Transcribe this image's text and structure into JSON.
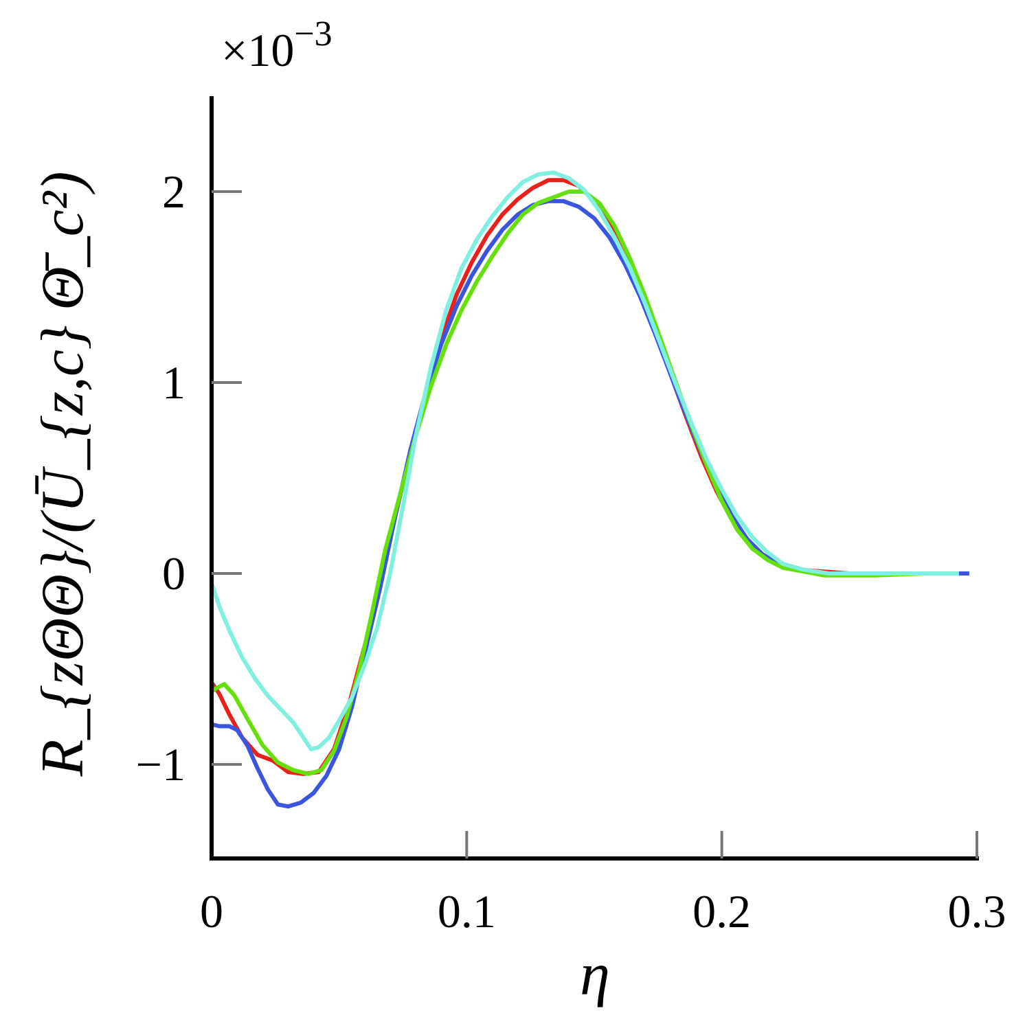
{
  "chart_data": {
    "type": "line",
    "title": "",
    "xlabel": "η",
    "ylabel": "R_{zΘΘ}/(Ū_{z,c} Θ̄_c²)",
    "y_multiplier": {
      "base": "×10",
      "exponent": "−3"
    },
    "xlim": [
      0,
      0.3
    ],
    "ylim": [
      -1.5,
      2.5
    ],
    "x_ticks": [
      0,
      0.1,
      0.2,
      0.3
    ],
    "x_tick_labels": [
      "0",
      "0.1",
      "0.2",
      "0.3"
    ],
    "y_ticks": [
      -1,
      0,
      1,
      2
    ],
    "y_tick_labels": [
      "−1",
      "0",
      "1",
      "2"
    ],
    "grid": false,
    "legend": "none",
    "series": [
      {
        "color": "#e8221b",
        "points": [
          [
            0,
            -0.57
          ],
          [
            0.003,
            -0.63
          ],
          [
            0.007,
            -0.74
          ],
          [
            0.012,
            -0.86
          ],
          [
            0.018,
            -0.95
          ],
          [
            0.024,
            -0.98
          ],
          [
            0.03,
            -1.04
          ],
          [
            0.036,
            -1.05
          ],
          [
            0.042,
            -1.04
          ],
          [
            0.048,
            -0.92
          ],
          [
            0.054,
            -0.68
          ],
          [
            0.06,
            -0.38
          ],
          [
            0.066,
            -0.05
          ],
          [
            0.072,
            0.3
          ],
          [
            0.078,
            0.64
          ],
          [
            0.084,
            0.95
          ],
          [
            0.09,
            1.23
          ],
          [
            0.096,
            1.46
          ],
          [
            0.102,
            1.63
          ],
          [
            0.108,
            1.77
          ],
          [
            0.114,
            1.88
          ],
          [
            0.12,
            1.96
          ],
          [
            0.126,
            2.02
          ],
          [
            0.132,
            2.06
          ],
          [
            0.138,
            2.06
          ],
          [
            0.144,
            2.03
          ],
          [
            0.15,
            1.95
          ],
          [
            0.156,
            1.83
          ],
          [
            0.162,
            1.67
          ],
          [
            0.168,
            1.48
          ],
          [
            0.174,
            1.27
          ],
          [
            0.18,
            1.04
          ],
          [
            0.186,
            0.82
          ],
          [
            0.192,
            0.61
          ],
          [
            0.198,
            0.43
          ],
          [
            0.204,
            0.28
          ],
          [
            0.21,
            0.17
          ],
          [
            0.216,
            0.1
          ],
          [
            0.222,
            0.05
          ],
          [
            0.23,
            0.02
          ],
          [
            0.24,
            0.01
          ],
          [
            0.25,
            0.0
          ],
          [
            0.27,
            0.0
          ],
          [
            0.29,
            0.0
          ],
          [
            0.295,
            0.0
          ]
        ]
      },
      {
        "color": "#3b55e0",
        "points": [
          [
            0,
            -0.79
          ],
          [
            0.003,
            -0.8
          ],
          [
            0.007,
            -0.8
          ],
          [
            0.01,
            -0.82
          ],
          [
            0.014,
            -0.9
          ],
          [
            0.018,
            -1.02
          ],
          [
            0.022,
            -1.13
          ],
          [
            0.026,
            -1.21
          ],
          [
            0.03,
            -1.22
          ],
          [
            0.035,
            -1.2
          ],
          [
            0.04,
            -1.15
          ],
          [
            0.045,
            -1.06
          ],
          [
            0.05,
            -0.92
          ],
          [
            0.055,
            -0.7
          ],
          [
            0.06,
            -0.42
          ],
          [
            0.066,
            -0.08
          ],
          [
            0.072,
            0.3
          ],
          [
            0.078,
            0.65
          ],
          [
            0.084,
            0.95
          ],
          [
            0.09,
            1.2
          ],
          [
            0.096,
            1.4
          ],
          [
            0.102,
            1.56
          ],
          [
            0.108,
            1.69
          ],
          [
            0.114,
            1.8
          ],
          [
            0.12,
            1.88
          ],
          [
            0.126,
            1.93
          ],
          [
            0.132,
            1.95
          ],
          [
            0.138,
            1.95
          ],
          [
            0.144,
            1.92
          ],
          [
            0.15,
            1.86
          ],
          [
            0.156,
            1.76
          ],
          [
            0.162,
            1.62
          ],
          [
            0.168,
            1.45
          ],
          [
            0.174,
            1.25
          ],
          [
            0.18,
            1.04
          ],
          [
            0.186,
            0.83
          ],
          [
            0.192,
            0.63
          ],
          [
            0.198,
            0.45
          ],
          [
            0.204,
            0.3
          ],
          [
            0.21,
            0.18
          ],
          [
            0.216,
            0.1
          ],
          [
            0.222,
            0.05
          ],
          [
            0.23,
            0.02
          ],
          [
            0.24,
            0.0
          ],
          [
            0.26,
            0.0
          ],
          [
            0.28,
            0.0
          ],
          [
            0.297,
            0.0
          ]
        ]
      },
      {
        "color": "#66e00d",
        "points": [
          [
            0,
            -0.62
          ],
          [
            0.002,
            -0.6
          ],
          [
            0.005,
            -0.58
          ],
          [
            0.009,
            -0.64
          ],
          [
            0.014,
            -0.76
          ],
          [
            0.02,
            -0.9
          ],
          [
            0.026,
            -0.99
          ],
          [
            0.032,
            -1.03
          ],
          [
            0.038,
            -1.05
          ],
          [
            0.043,
            -1.03
          ],
          [
            0.048,
            -0.93
          ],
          [
            0.053,
            -0.75
          ],
          [
            0.058,
            -0.5
          ],
          [
            0.063,
            -0.2
          ],
          [
            0.068,
            0.12
          ],
          [
            0.074,
            0.42
          ],
          [
            0.08,
            0.72
          ],
          [
            0.086,
            0.98
          ],
          [
            0.092,
            1.2
          ],
          [
            0.098,
            1.38
          ],
          [
            0.104,
            1.53
          ],
          [
            0.11,
            1.66
          ],
          [
            0.116,
            1.78
          ],
          [
            0.122,
            1.88
          ],
          [
            0.128,
            1.94
          ],
          [
            0.134,
            1.97
          ],
          [
            0.14,
            2.0
          ],
          [
            0.146,
            2.0
          ],
          [
            0.152,
            1.94
          ],
          [
            0.158,
            1.82
          ],
          [
            0.164,
            1.65
          ],
          [
            0.17,
            1.45
          ],
          [
            0.176,
            1.23
          ],
          [
            0.182,
            1.0
          ],
          [
            0.188,
            0.78
          ],
          [
            0.194,
            0.57
          ],
          [
            0.2,
            0.38
          ],
          [
            0.206,
            0.23
          ],
          [
            0.212,
            0.13
          ],
          [
            0.218,
            0.07
          ],
          [
            0.224,
            0.03
          ],
          [
            0.232,
            0.01
          ],
          [
            0.24,
            -0.01
          ],
          [
            0.26,
            -0.01
          ],
          [
            0.28,
            0.0
          ],
          [
            0.293,
            0.0
          ]
        ]
      },
      {
        "color": "#7ff0e0",
        "points": [
          [
            0,
            -0.05
          ],
          [
            0.003,
            -0.17
          ],
          [
            0.007,
            -0.3
          ],
          [
            0.012,
            -0.44
          ],
          [
            0.017,
            -0.55
          ],
          [
            0.022,
            -0.64
          ],
          [
            0.027,
            -0.71
          ],
          [
            0.032,
            -0.78
          ],
          [
            0.036,
            -0.86
          ],
          [
            0.039,
            -0.92
          ],
          [
            0.042,
            -0.91
          ],
          [
            0.046,
            -0.86
          ],
          [
            0.05,
            -0.77
          ],
          [
            0.055,
            -0.65
          ],
          [
            0.06,
            -0.48
          ],
          [
            0.065,
            -0.28
          ],
          [
            0.07,
            0.0
          ],
          [
            0.075,
            0.35
          ],
          [
            0.08,
            0.72
          ],
          [
            0.086,
            1.08
          ],
          [
            0.092,
            1.38
          ],
          [
            0.098,
            1.6
          ],
          [
            0.104,
            1.75
          ],
          [
            0.11,
            1.87
          ],
          [
            0.116,
            1.97
          ],
          [
            0.122,
            2.05
          ],
          [
            0.128,
            2.09
          ],
          [
            0.134,
            2.1
          ],
          [
            0.14,
            2.07
          ],
          [
            0.146,
            2.01
          ],
          [
            0.152,
            1.9
          ],
          [
            0.158,
            1.76
          ],
          [
            0.164,
            1.6
          ],
          [
            0.17,
            1.41
          ],
          [
            0.176,
            1.2
          ],
          [
            0.182,
            0.99
          ],
          [
            0.188,
            0.79
          ],
          [
            0.194,
            0.6
          ],
          [
            0.2,
            0.44
          ],
          [
            0.206,
            0.3
          ],
          [
            0.212,
            0.19
          ],
          [
            0.218,
            0.11
          ],
          [
            0.224,
            0.05
          ],
          [
            0.232,
            0.02
          ],
          [
            0.242,
            0.0
          ],
          [
            0.26,
            0.0
          ],
          [
            0.28,
            0.0
          ],
          [
            0.293,
            0.0
          ]
        ]
      }
    ]
  }
}
